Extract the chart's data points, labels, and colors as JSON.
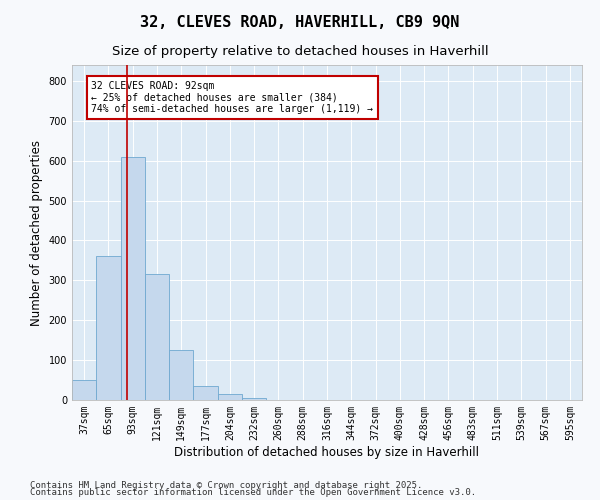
{
  "title": "32, CLEVES ROAD, HAVERHILL, CB9 9QN",
  "subtitle": "Size of property relative to detached houses in Haverhill",
  "xlabel": "Distribution of detached houses by size in Haverhill",
  "ylabel": "Number of detached properties",
  "footnote1": "Contains HM Land Registry data © Crown copyright and database right 2025.",
  "footnote2": "Contains public sector information licensed under the Open Government Licence v3.0.",
  "annotation_lines": [
    "32 CLEVES ROAD: 92sqm",
    "← 25% of detached houses are smaller (384)",
    "74% of semi-detached houses are larger (1,119) →"
  ],
  "bar_labels": [
    "37sqm",
    "65sqm",
    "93sqm",
    "121sqm",
    "149sqm",
    "177sqm",
    "204sqm",
    "232sqm",
    "260sqm",
    "288sqm",
    "316sqm",
    "344sqm",
    "372sqm",
    "400sqm",
    "428sqm",
    "456sqm",
    "483sqm",
    "511sqm",
    "539sqm",
    "567sqm",
    "595sqm"
  ],
  "bar_values": [
    50,
    360,
    610,
    315,
    125,
    35,
    15,
    5,
    0,
    0,
    0,
    0,
    0,
    0,
    0,
    0,
    0,
    0,
    0,
    0,
    0
  ],
  "bar_color": "#c5d8ed",
  "bar_edge_color": "#6fa8d0",
  "vline_color": "#c00000",
  "vline_x_index": 1.75,
  "ylim": [
    0,
    840
  ],
  "yticks": [
    0,
    100,
    200,
    300,
    400,
    500,
    600,
    700,
    800
  ],
  "fig_bg_color": "#f7f9fc",
  "plot_bg": "#ddeaf5",
  "annotation_box_color": "#c00000",
  "title_fontsize": 11,
  "subtitle_fontsize": 9.5,
  "axis_label_fontsize": 8.5,
  "tick_fontsize": 7,
  "footnote_fontsize": 6.5
}
